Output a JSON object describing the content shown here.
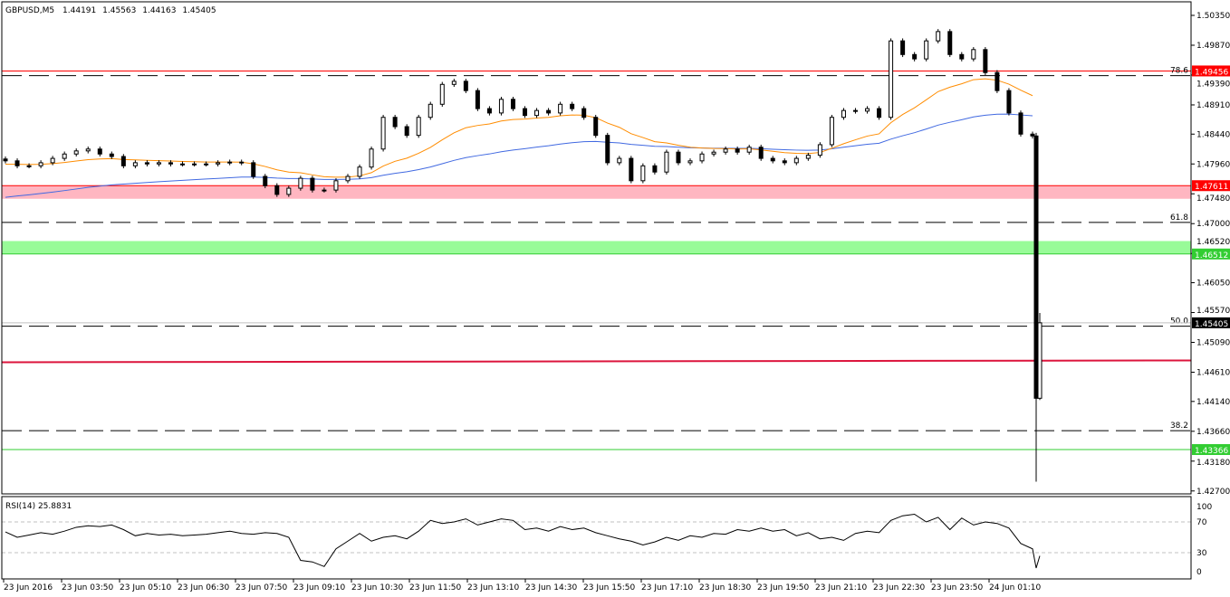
{
  "header": {
    "symbol_tf": "GBPUSD,M5",
    "open": "1.44191",
    "high": "1.45563",
    "low": "1.44163",
    "close": "1.45405"
  },
  "rsi_label": "RSI(14) 25.8831",
  "colors": {
    "fast_ma": "#FF8C00",
    "slow_ma": "#4169E1",
    "resistance": "#FF0000",
    "pink_zone": "#FFB6C1",
    "green_zone": "#98FB98",
    "support": "#32CD32",
    "pivot": "#DC143C",
    "bid": "#000000"
  },
  "chart_data": [
    {
      "type": "candlestick",
      "title": "GBPUSD,M5",
      "ylim": [
        1.427,
        1.5055
      ],
      "y_ticks": [
        "1.50350",
        "1.49870",
        "1.49390",
        "1.48910",
        "1.48440",
        "1.47960",
        "1.47480",
        "1.47000",
        "1.46520",
        "1.46050",
        "1.45570",
        "1.45090",
        "1.44610",
        "1.44140",
        "1.43660",
        "1.43180",
        "1.42700"
      ],
      "x_ticks": [
        "23 Jun 2016",
        "23 Jun 03:50",
        "23 Jun 05:10",
        "23 Jun 06:30",
        "23 Jun 07:50",
        "23 Jun 09:10",
        "23 Jun 10:30",
        "23 Jun 11:50",
        "23 Jun 13:10",
        "23 Jun 14:30",
        "23 Jun 15:50",
        "23 Jun 17:10",
        "23 Jun 18:30",
        "23 Jun 19:50",
        "23 Jun 21:10",
        "23 Jun 22:30",
        "23 Jun 23:50",
        "24 Jun 01:10"
      ],
      "closes": [
        1.4801,
        1.4793,
        1.4793,
        1.4798,
        1.4805,
        1.4812,
        1.4817,
        1.482,
        1.4812,
        1.4808,
        1.4793,
        1.4798,
        1.4796,
        1.4798,
        1.4796,
        1.4796,
        1.4796,
        1.4796,
        1.4798,
        1.4799,
        1.4798,
        1.4776,
        1.4761,
        1.4747,
        1.4757,
        1.4773,
        1.4754,
        1.4754,
        1.4769,
        1.4776,
        1.4791,
        1.482,
        1.4871,
        1.4856,
        1.4842,
        1.4871,
        1.4892,
        1.4924,
        1.4929,
        1.4914,
        1.4885,
        1.4878,
        1.49,
        1.4885,
        1.4874,
        1.4882,
        1.4878,
        1.4892,
        1.4885,
        1.4871,
        1.4842,
        1.4798,
        1.4805,
        1.4769,
        1.4793,
        1.4783,
        1.4815,
        1.4798,
        1.4801,
        1.4812,
        1.4815,
        1.482,
        1.4815,
        1.4823,
        1.4805,
        1.4801,
        1.4798,
        1.4805,
        1.481,
        1.4827,
        1.4871,
        1.4882,
        1.4881,
        1.4885,
        1.4871,
        1.4994,
        1.4972,
        1.4965,
        1.4994,
        1.5009,
        1.4972,
        1.4965,
        1.498,
        1.4943,
        1.4914,
        1.4878,
        1.4844,
        1.4841
      ],
      "drop_candle": {
        "open": 1.4841,
        "high": 1.4846,
        "low": 1.4285,
        "close": 1.44191
      },
      "last_candle": {
        "open": 1.44191,
        "high": 1.45563,
        "low": 1.44163,
        "close": 1.45405
      },
      "levels": [
        {
          "kind": "solid",
          "price": 1.49456,
          "label": "1.49456",
          "color": "#FF0000"
        },
        {
          "kind": "fib",
          "price": 1.4938,
          "label": "78.6"
        },
        {
          "kind": "zone",
          "from": 1.474,
          "to": 1.47611,
          "label": "1.47611",
          "color": "#FFB6C1",
          "line": "#FF0000"
        },
        {
          "kind": "fib",
          "price": 1.4702,
          "label": "61.8"
        },
        {
          "kind": "zone",
          "from": 1.46512,
          "to": 1.4672,
          "label": "1.46512",
          "color": "#98FB98",
          "line": "#32CD32"
        },
        {
          "kind": "fib",
          "price": 1.4535,
          "label": "50.0"
        },
        {
          "kind": "fib",
          "price": 1.4367,
          "label": "38.2"
        },
        {
          "kind": "solid",
          "price": 1.43366,
          "label": "1.43366",
          "color": "#32CD32"
        }
      ],
      "bid": {
        "price": 1.45405,
        "label": "1.45405"
      },
      "pivot_line": {
        "start": 1.4477,
        "end": 1.448,
        "color": "#DC143C"
      }
    },
    {
      "type": "line",
      "title": "RSI(14) 25.8831",
      "ylim": [
        0,
        100
      ],
      "y_ticks": [
        "100",
        "70",
        "30",
        "0"
      ],
      "levels": [
        70,
        30
      ],
      "values": [
        57,
        50,
        53,
        56,
        54,
        58,
        63,
        65,
        64,
        66,
        60,
        52,
        55,
        53,
        54,
        52,
        53,
        54,
        56,
        58,
        55,
        54,
        56,
        55,
        50,
        20,
        18,
        12,
        35,
        45,
        55,
        45,
        50,
        52,
        48,
        58,
        72,
        68,
        70,
        74,
        66,
        70,
        74,
        72,
        60,
        62,
        58,
        64,
        60,
        62,
        56,
        52,
        48,
        45,
        40,
        44,
        50,
        46,
        52,
        50,
        55,
        54,
        60,
        58,
        62,
        58,
        60,
        52,
        56,
        48,
        50,
        46,
        55,
        58,
        56,
        72,
        78,
        80,
        70,
        76,
        60,
        75,
        66,
        70,
        68,
        62,
        42,
        35,
        10,
        25.88
      ]
    }
  ]
}
